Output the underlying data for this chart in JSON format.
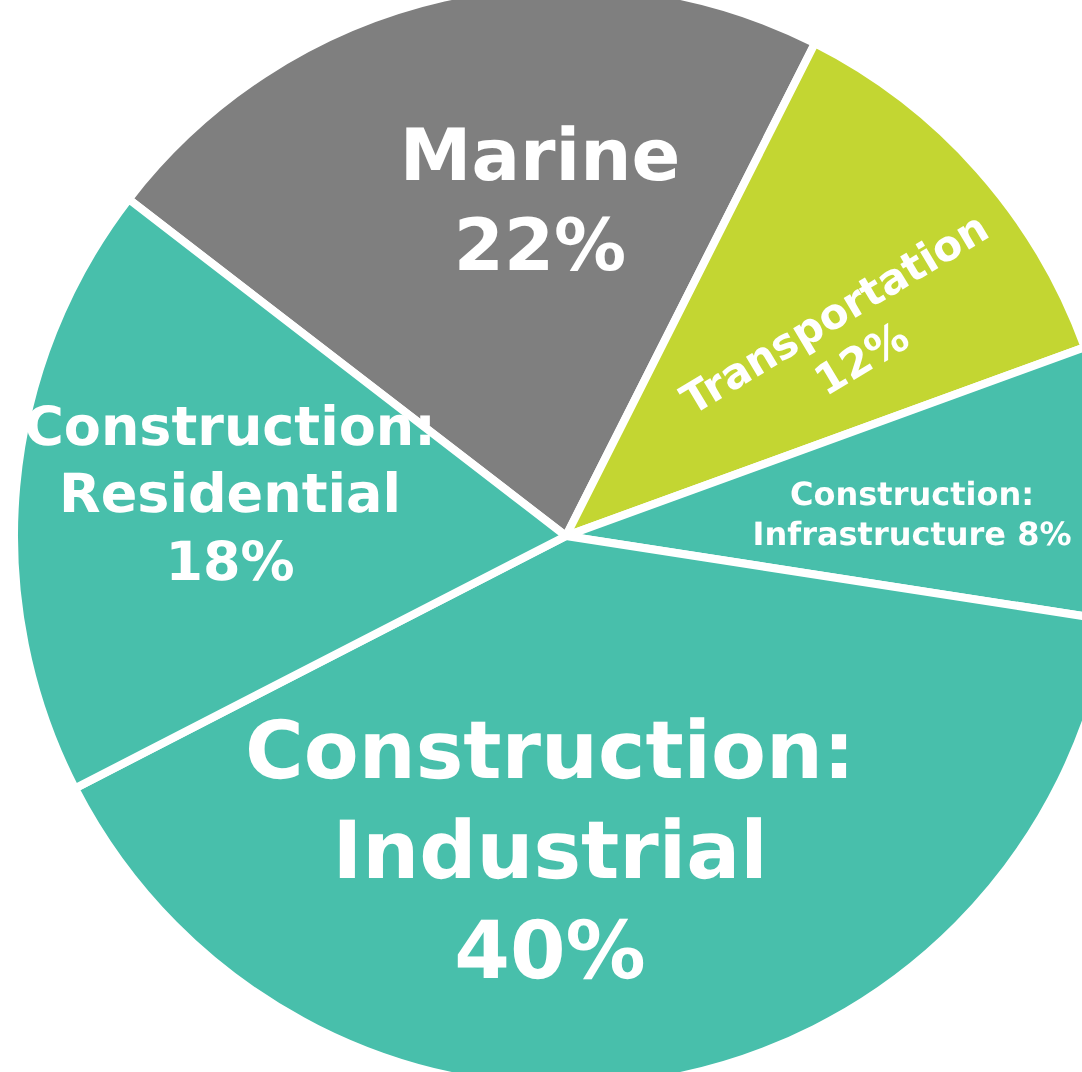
{
  "chart_data": {
    "type": "pie",
    "categories": [
      "Marine",
      "Transportation",
      "Construction: Infrastructure",
      "Construction: Industrial",
      "Construction: Residential"
    ],
    "values": [
      22,
      12,
      8,
      40,
      18
    ],
    "value_labels": [
      "22%",
      "12%",
      "8%",
      "40%",
      "18%"
    ],
    "colors": [
      "#7f7f7f",
      "#c3d632",
      "#48bfab",
      "#48bfab",
      "#48bfab"
    ]
  }
}
